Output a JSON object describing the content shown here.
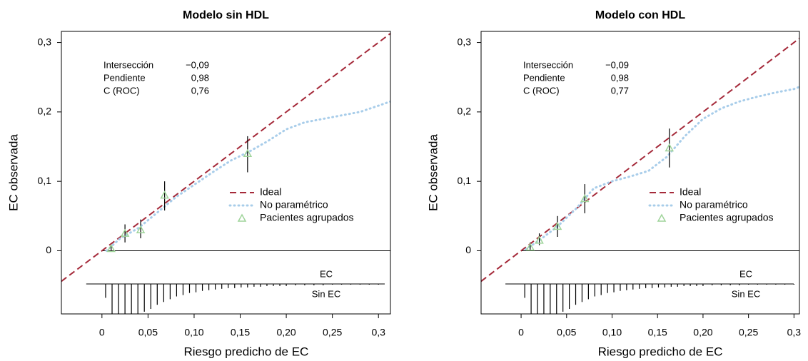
{
  "chart_data": [
    {
      "type": "calibration",
      "title": "Modelo sin HDL",
      "x_label": "Riesgo predicho de EC",
      "y_label": "EC observada",
      "xlim": [
        -0.044,
        0.313
      ],
      "ylim": [
        -0.091,
        0.316
      ],
      "xticks": [
        0,
        {
          "value": 0.05,
          "label": "0,05"
        },
        {
          "value": 0.1,
          "label": "0,10"
        },
        {
          "value": 0.15,
          "label": "0,15"
        },
        {
          "value": 0.2,
          "label": "0,20"
        },
        {
          "value": 0.25,
          "label": "0,25"
        },
        {
          "value": 0.3,
          "label": "0,3"
        }
      ],
      "yticks": [
        0,
        {
          "value": 0.1,
          "label": "0,1"
        },
        {
          "value": 0.2,
          "label": "0,2"
        },
        {
          "value": 0.3,
          "label": "0,3"
        }
      ],
      "stats": [
        {
          "label": "Intersección",
          "value": "−0,09"
        },
        {
          "label": "Pendiente",
          "value": "0,98"
        },
        {
          "label": "C (ROC)",
          "value": "0,76"
        }
      ],
      "series": [
        {
          "name": "Ideal",
          "color": "#a52a3a"
        },
        {
          "name": "No paramétrico",
          "color": "#a8cdea",
          "x": [
            0.005,
            0.02,
            0.04,
            0.06,
            0.08,
            0.1,
            0.12,
            0.14,
            0.16,
            0.18,
            0.2,
            0.22,
            0.24,
            0.26,
            0.28,
            0.3,
            0.313
          ],
          "values": [
            0,
            0.018,
            0.033,
            0.055,
            0.077,
            0.095,
            0.113,
            0.13,
            0.143,
            0.158,
            0.175,
            0.185,
            0.19,
            0.195,
            0.2,
            0.209,
            0.215
          ]
        },
        {
          "name": "Pacientes agrupados",
          "color": "#9fd49a",
          "x": [
            0.01,
            0.025,
            0.042,
            0.068,
            0.158
          ],
          "values": [
            0.003,
            0.025,
            0.03,
            0.08,
            0.14
          ],
          "lower": [
            0,
            0.012,
            0.018,
            0.058,
            0.113
          ],
          "upper": [
            0.008,
            0.038,
            0.045,
            0.1,
            0.165
          ]
        }
      ],
      "rug_labels": [
        "EC",
        "Sin EC"
      ],
      "rug": {
        "x": [
          0.004,
          0.011,
          0.018,
          0.025,
          0.032,
          0.039,
          0.046,
          0.053,
          0.06,
          0.067,
          0.074,
          0.081,
          0.088,
          0.095,
          0.102,
          0.109,
          0.116,
          0.123,
          0.13,
          0.137,
          0.144,
          0.151,
          0.158,
          0.165,
          0.172,
          0.179,
          0.186,
          0.193,
          0.2,
          0.21,
          0.22,
          0.23,
          0.24,
          0.25,
          0.26,
          0.27,
          0.28,
          0.29,
          0.3
        ],
        "values": [
          0.02,
          0.043,
          0.043,
          0.043,
          0.043,
          0.043,
          0.04,
          0.036,
          0.03,
          0.026,
          0.022,
          0.018,
          0.016,
          0.013,
          0.012,
          0.01,
          0.009,
          0.008,
          0.007,
          0.006,
          0.006,
          0.005,
          0.005,
          0.004,
          0.004,
          0.003,
          0.003,
          0.003,
          0.003,
          0.002,
          0.002,
          0.002,
          0.002,
          0.001,
          0.001,
          0.001,
          0.001,
          0.001,
          0.001
        ]
      }
    },
    {
      "type": "calibration",
      "title": "Modelo con HDL",
      "x_label": "Riesgo predicho de EC",
      "y_label": "EC observada",
      "xlim": [
        -0.044,
        0.306
      ],
      "ylim": [
        -0.091,
        0.316
      ],
      "xticks": [
        0,
        {
          "value": 0.05,
          "label": "0,05"
        },
        {
          "value": 0.1,
          "label": "0,10"
        },
        {
          "value": 0.15,
          "label": "0,15"
        },
        {
          "value": 0.2,
          "label": "0,20"
        },
        {
          "value": 0.25,
          "label": "0,25"
        },
        {
          "value": 0.3,
          "label": "0,3"
        }
      ],
      "yticks": [
        0,
        {
          "value": 0.1,
          "label": "0,1"
        },
        {
          "value": 0.2,
          "label": "0,2"
        },
        {
          "value": 0.3,
          "label": "0,3"
        }
      ],
      "stats": [
        {
          "label": "Intersección",
          "value": "−0,09"
        },
        {
          "label": "Pendiente",
          "value": "0,98"
        },
        {
          "label": "C (ROC)",
          "value": "0,77"
        }
      ],
      "series": [
        {
          "name": "Ideal",
          "color": "#a52a3a"
        },
        {
          "name": "No paramétrico",
          "color": "#a8cdea",
          "x": [
            0.005,
            0.02,
            0.04,
            0.06,
            0.08,
            0.1,
            0.12,
            0.14,
            0.16,
            0.18,
            0.2,
            0.22,
            0.24,
            0.26,
            0.28,
            0.3,
            0.306
          ],
          "values": [
            0.002,
            0.015,
            0.035,
            0.06,
            0.09,
            0.1,
            0.107,
            0.115,
            0.135,
            0.165,
            0.19,
            0.205,
            0.215,
            0.222,
            0.228,
            0.233,
            0.236
          ]
        },
        {
          "name": "Pacientes agrupados",
          "color": "#9fd49a",
          "x": [
            0.01,
            0.02,
            0.04,
            0.07,
            0.163
          ],
          "values": [
            0.005,
            0.015,
            0.035,
            0.075,
            0.148
          ],
          "lower": [
            0,
            0.008,
            0.02,
            0.054,
            0.12
          ],
          "upper": [
            0.012,
            0.025,
            0.05,
            0.096,
            0.176
          ]
        }
      ],
      "rug_labels": [
        "EC",
        "Sin EC"
      ],
      "rug": {
        "x": [
          0.004,
          0.011,
          0.018,
          0.025,
          0.032,
          0.039,
          0.046,
          0.053,
          0.06,
          0.067,
          0.074,
          0.081,
          0.088,
          0.095,
          0.102,
          0.109,
          0.116,
          0.123,
          0.13,
          0.137,
          0.144,
          0.151,
          0.158,
          0.165,
          0.172,
          0.179,
          0.186,
          0.193,
          0.2,
          0.21,
          0.22,
          0.23,
          0.24,
          0.25,
          0.26,
          0.27,
          0.28,
          0.29,
          0.3
        ],
        "values": [
          0.02,
          0.043,
          0.043,
          0.043,
          0.043,
          0.043,
          0.04,
          0.036,
          0.03,
          0.026,
          0.022,
          0.018,
          0.016,
          0.013,
          0.012,
          0.01,
          0.009,
          0.008,
          0.007,
          0.006,
          0.006,
          0.005,
          0.005,
          0.004,
          0.004,
          0.003,
          0.003,
          0.003,
          0.003,
          0.002,
          0.002,
          0.002,
          0.002,
          0.001,
          0.001,
          0.001,
          0.001,
          0.001,
          0.001
        ]
      }
    }
  ]
}
